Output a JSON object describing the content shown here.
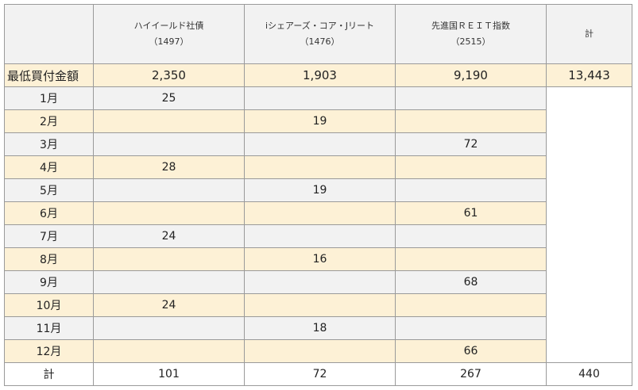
{
  "header": {
    "corner": "",
    "columns": [
      {
        "name": "ハイイールド社債",
        "code": "（1497）"
      },
      {
        "name": "iシェアーズ・コア・Jリート",
        "code": "（1476）"
      },
      {
        "name": "先進国ＲＥＩＴ指数",
        "code": "（2515）"
      }
    ],
    "total_label": "計"
  },
  "min_row": {
    "label": "最低買付金額",
    "values": [
      "2,350",
      "1,903",
      "9,190",
      "13,443"
    ]
  },
  "months": [
    {
      "label": "1月",
      "values": [
        "25",
        "",
        ""
      ]
    },
    {
      "label": "2月",
      "values": [
        "",
        "19",
        ""
      ]
    },
    {
      "label": "3月",
      "values": [
        "",
        "",
        "72"
      ]
    },
    {
      "label": "4月",
      "values": [
        "28",
        "",
        ""
      ]
    },
    {
      "label": "5月",
      "values": [
        "",
        "19",
        ""
      ]
    },
    {
      "label": "6月",
      "values": [
        "",
        "",
        "61"
      ]
    },
    {
      "label": "7月",
      "values": [
        "24",
        "",
        ""
      ]
    },
    {
      "label": "8月",
      "values": [
        "",
        "16",
        ""
      ]
    },
    {
      "label": "9月",
      "values": [
        "",
        "",
        "68"
      ]
    },
    {
      "label": "10月",
      "values": [
        "24",
        "",
        ""
      ]
    },
    {
      "label": "11月",
      "values": [
        "",
        "18",
        ""
      ]
    },
    {
      "label": "12月",
      "values": [
        "",
        "",
        "66"
      ]
    }
  ],
  "total_row": {
    "label": "計",
    "values": [
      "101",
      "72",
      "267",
      "440"
    ]
  }
}
